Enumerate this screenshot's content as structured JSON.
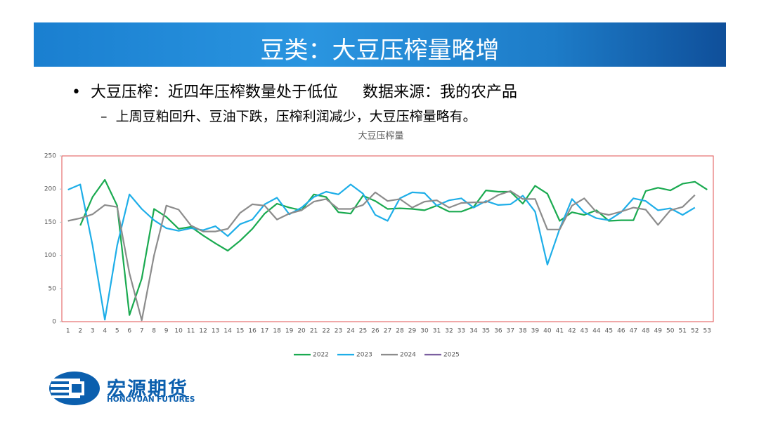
{
  "slide": {
    "title": "豆类：大豆压榨量略增",
    "bullets": [
      "大豆压榨：近四年压榨数量处于低位",
      "数据来源：我的农产品"
    ],
    "sub_bullet": "上周豆粕回升、豆油下跌，压榨利润减少，大豆压榨量略有。",
    "logo_name": "宏源期货",
    "logo_english": "HONGYUAN FUTURES"
  },
  "chart_data": {
    "type": "line",
    "title": "大豆压榨量",
    "categories": [
      "1",
      "2",
      "3",
      "4",
      "5",
      "6",
      "7",
      "8",
      "9",
      "10",
      "11",
      "12",
      "13",
      "14",
      "15",
      "16",
      "17",
      "18",
      "19",
      "20",
      "21",
      "22",
      "23",
      "24",
      "25",
      "26",
      "27",
      "28",
      "29",
      "30",
      "31",
      "32",
      "33",
      "34",
      "35",
      "36",
      "37",
      "38",
      "39",
      "40",
      "41",
      "42",
      "43",
      "44",
      "45",
      "46",
      "47",
      "48",
      "49",
      "50",
      "51",
      "52",
      "53"
    ],
    "series": [
      {
        "name": "2022",
        "color": "#1aaa50",
        "values": [
          null,
          145,
          188,
          214,
          175,
          10,
          65,
          170,
          158,
          140,
          143,
          130,
          118,
          107,
          122,
          140,
          163,
          178,
          172,
          168,
          192,
          188,
          165,
          163,
          190,
          182,
          170,
          171,
          170,
          168,
          175,
          166,
          166,
          173,
          198,
          196,
          196,
          178,
          205,
          193,
          152,
          165,
          161,
          168,
          152,
          153,
          153,
          197,
          202,
          198,
          208,
          211,
          199
        ]
      },
      {
        "name": "2023",
        "color": "#1eaee8",
        "values": [
          199,
          207,
          115,
          3,
          115,
          192,
          170,
          153,
          141,
          137,
          141,
          138,
          144,
          129,
          147,
          154,
          177,
          187,
          162,
          172,
          188,
          196,
          192,
          207,
          193,
          161,
          152,
          186,
          195,
          194,
          175,
          183,
          186,
          172,
          182,
          176,
          177,
          190,
          166,
          86,
          140,
          185,
          165,
          156,
          153,
          165,
          186,
          182,
          168,
          171,
          161,
          172,
          null
        ]
      },
      {
        "name": "2024",
        "color": "#8c8c8c",
        "values": [
          152,
          156,
          162,
          176,
          173,
          73,
          2,
          100,
          175,
          169,
          145,
          136,
          136,
          140,
          164,
          177,
          175,
          154,
          163,
          168,
          181,
          185,
          170,
          170,
          176,
          195,
          182,
          185,
          172,
          181,
          183,
          172,
          179,
          180,
          180,
          191,
          197,
          185,
          185,
          139,
          139,
          175,
          186,
          165,
          161,
          166,
          172,
          169,
          146,
          168,
          173,
          191,
          null
        ]
      },
      {
        "name": "2025",
        "color": "#7b5fa0",
        "values": [
          null,
          null,
          null,
          null,
          null,
          null,
          null,
          null,
          null,
          null,
          null,
          null,
          null,
          null,
          null,
          null,
          null,
          null,
          null,
          null,
          null,
          null,
          null,
          null,
          null,
          null,
          null,
          null,
          null,
          null,
          null,
          null,
          null,
          null,
          null,
          null,
          null,
          null,
          null,
          null,
          null,
          null,
          null,
          null,
          null,
          null,
          null,
          null,
          null,
          null,
          null,
          null,
          null
        ]
      }
    ],
    "ylim": [
      0,
      250
    ],
    "yticks": [
      0,
      50,
      100,
      150,
      200,
      250
    ],
    "legend": "bottom",
    "frame_color": "#e05050"
  }
}
